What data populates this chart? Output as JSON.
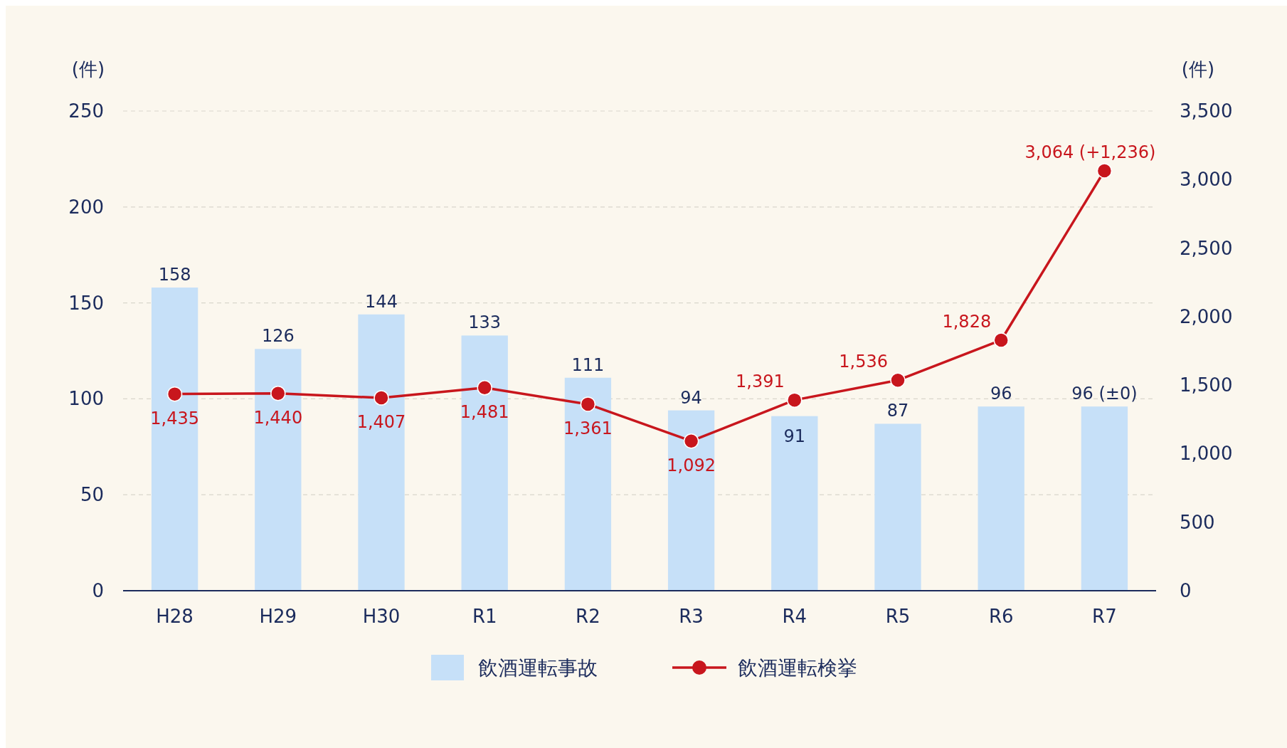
{
  "chart_data": {
    "type": "bar",
    "ylabel": "(件)",
    "y2label": "(件)",
    "categories": [
      "H28",
      "H29",
      "H30",
      "R1",
      "R2",
      "R3",
      "R4",
      "R5",
      "R6",
      "R7"
    ],
    "series": [
      {
        "name": "飲酒運転事故",
        "color": "#c6e0f8",
        "values": [
          158,
          126,
          144,
          133,
          111,
          94,
          91,
          87,
          96,
          96
        ],
        "value_labels": [
          "158",
          "126",
          "144",
          "133",
          "111",
          "94",
          "91",
          "87",
          "96",
          "96 (±0)"
        ]
      },
      {
        "name": "飲酒運転検挙",
        "type": "line",
        "axis": "y2",
        "color": "#c8161d",
        "marker": "circle",
        "values": [
          1435,
          1440,
          1407,
          1481,
          1361,
          1092,
          1391,
          1536,
          1828,
          3064
        ],
        "value_labels": [
          "1,435",
          "1,440",
          "1,407",
          "1,481",
          "1,361",
          "1,092",
          "1,391",
          "1,536",
          "1,828",
          "3,064 (+1,236)"
        ]
      }
    ],
    "ylim": [
      0,
      250
    ],
    "yticks": [
      0,
      50,
      100,
      150,
      200,
      250
    ],
    "y2lim": [
      0,
      3500
    ],
    "y2ticks": [
      0,
      {
        "value": 500,
        "label": "500"
      },
      {
        "value": 1000,
        "label": "1,000"
      },
      {
        "value": 1500,
        "label": "1,500"
      },
      {
        "value": 2000,
        "label": "2,000"
      },
      {
        "value": 2500,
        "label": "2,500"
      },
      {
        "value": 3000,
        "label": "3,000"
      },
      {
        "value": 3500,
        "label": "3,500"
      }
    ],
    "grid": "y",
    "legend": "bottom"
  }
}
